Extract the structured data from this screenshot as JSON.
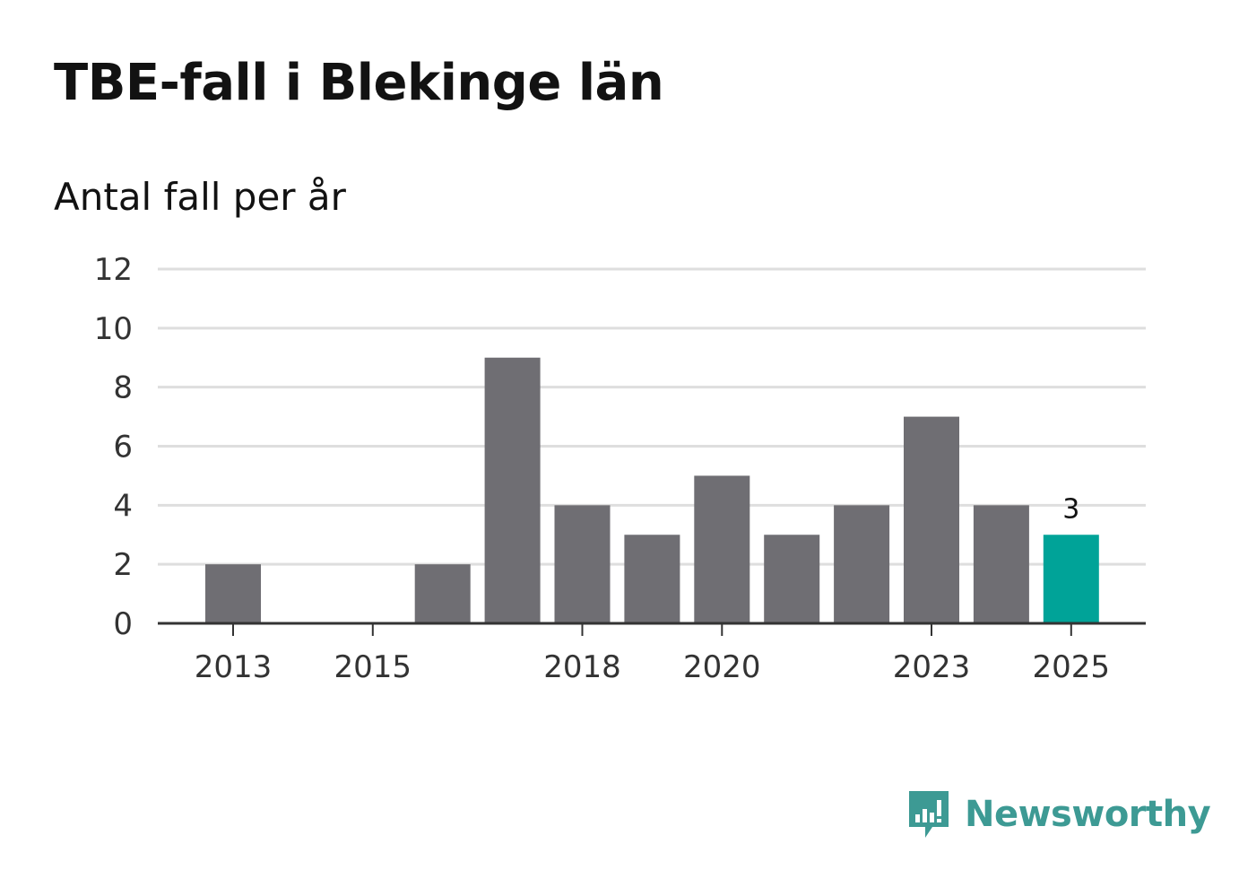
{
  "title": "TBE-fall i Blekinge län",
  "subtitle": "Antal fall per år",
  "brand": {
    "name": "Newsworthy",
    "icon": "newsworthy-logo-icon",
    "color": "#3d9a94"
  },
  "chart_data": {
    "type": "bar",
    "categories": [
      "2013",
      "2014",
      "2015",
      "2016",
      "2017",
      "2018",
      "2019",
      "2020",
      "2021",
      "2022",
      "2023",
      "2024",
      "2025"
    ],
    "values": [
      2,
      0,
      0,
      2,
      9,
      4,
      3,
      5,
      3,
      4,
      7,
      4,
      3
    ],
    "x_tick_labels": [
      "2013",
      "2015",
      "2018",
      "2020",
      "2023",
      "2025"
    ],
    "y_ticks": [
      0,
      2,
      4,
      6,
      8,
      10,
      12
    ],
    "ylim": [
      0,
      12
    ],
    "highlight": {
      "category": "2025",
      "label": "3",
      "color": "#00a398"
    },
    "bar_color": "#6f6e73",
    "grid": true,
    "xlabel": "",
    "ylabel": ""
  }
}
